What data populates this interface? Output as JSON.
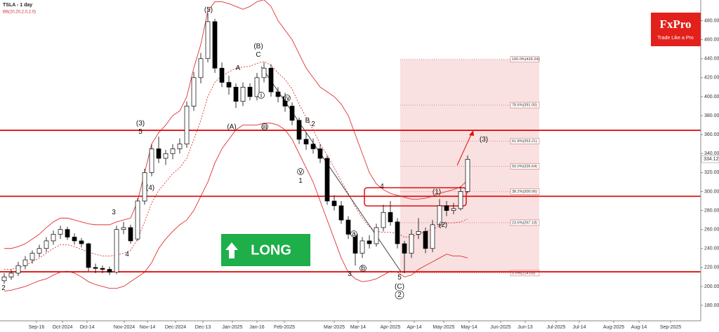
{
  "header": {
    "title": "TSLA - 1 day",
    "indicator": "BB(20,20,2,0,2.0)"
  },
  "logo": {
    "name": "FxPro",
    "tagline": "Trade Like a Pro"
  },
  "signal": "LONG",
  "chart_data": {
    "type": "candlestick",
    "up_color": "#ffffff",
    "down_color": "#000000",
    "ohlc": [
      [
        206,
        214,
        203,
        210
      ],
      [
        210,
        218,
        207,
        214
      ],
      [
        214,
        226,
        211,
        222
      ],
      [
        222,
        232,
        218,
        228
      ],
      [
        228,
        238,
        224,
        235
      ],
      [
        235,
        244,
        231,
        240
      ],
      [
        240,
        252,
        236,
        248
      ],
      [
        248,
        259,
        244,
        255
      ],
      [
        255,
        264,
        250,
        260
      ],
      [
        260,
        263,
        249,
        252
      ],
      [
        252,
        256,
        244,
        248
      ],
      [
        248,
        251,
        241,
        245
      ],
      [
        245,
        246,
        216,
        220
      ],
      [
        220,
        224,
        214,
        219
      ],
      [
        219,
        222,
        214,
        218
      ],
      [
        218,
        221,
        212,
        215
      ],
      [
        215,
        264,
        213,
        260
      ],
      [
        260,
        268,
        255,
        262
      ],
      [
        262,
        265,
        245,
        248
      ],
      [
        250,
        293,
        248,
        290
      ],
      [
        290,
        324,
        286,
        320
      ],
      [
        320,
        350,
        316,
        345
      ],
      [
        345,
        358,
        330,
        335
      ],
      [
        335,
        344,
        328,
        340
      ],
      [
        340,
        350,
        334,
        345
      ],
      [
        345,
        356,
        340,
        350
      ],
      [
        350,
        395,
        346,
        390
      ],
      [
        390,
        426,
        385,
        420
      ],
      [
        420,
        446,
        414,
        440
      ],
      [
        440,
        488,
        436,
        479
      ],
      [
        479,
        482,
        425,
        430
      ],
      [
        430,
        436,
        410,
        415
      ],
      [
        415,
        422,
        402,
        410
      ],
      [
        410,
        414,
        388,
        395
      ],
      [
        395,
        415,
        390,
        410
      ],
      [
        410,
        414,
        396,
        400
      ],
      [
        400,
        425,
        396,
        420
      ],
      [
        420,
        436,
        415,
        430
      ],
      [
        430,
        434,
        400,
        405
      ],
      [
        405,
        410,
        394,
        400
      ],
      [
        400,
        404,
        384,
        390
      ],
      [
        390,
        394,
        370,
        375
      ],
      [
        375,
        378,
        350,
        355
      ],
      [
        355,
        362,
        344,
        350
      ],
      [
        350,
        356,
        340,
        345
      ],
      [
        345,
        350,
        330,
        335
      ],
      [
        335,
        338,
        286,
        290
      ],
      [
        290,
        296,
        280,
        285
      ],
      [
        285,
        290,
        266,
        270
      ],
      [
        270,
        274,
        250,
        255
      ],
      [
        255,
        258,
        222,
        235
      ],
      [
        235,
        252,
        230,
        248
      ],
      [
        248,
        254,
        240,
        245
      ],
      [
        245,
        266,
        242,
        262
      ],
      [
        262,
        286,
        258,
        278
      ],
      [
        278,
        290,
        264,
        268
      ],
      [
        268,
        272,
        240,
        245
      ],
      [
        245,
        248,
        214,
        235
      ],
      [
        235,
        260,
        230,
        255
      ],
      [
        255,
        272,
        250,
        258
      ],
      [
        258,
        262,
        235,
        240
      ],
      [
        240,
        270,
        236,
        265
      ],
      [
        265,
        292,
        262,
        285
      ],
      [
        285,
        290,
        274,
        280
      ],
      [
        280,
        288,
        276,
        282
      ],
      [
        282,
        305,
        280,
        300
      ],
      [
        300,
        338,
        298,
        334
      ]
    ],
    "bands": [
      {
        "color": "#e03030",
        "dashed": false,
        "values": [
          240,
          240,
          242,
          245,
          250,
          255,
          262,
          268,
          272,
          272,
          270,
          268,
          266,
          265,
          265,
          265,
          268,
          270,
          272,
          290,
          320,
          350,
          362,
          370,
          380,
          385,
          400,
          430,
          455,
          490,
          500,
          500,
          498,
          495,
          492,
          495,
          500,
          502,
          495,
          480,
          470,
          460,
          445,
          430,
          420,
          410,
          405,
          400,
          392,
          380,
          360,
          340,
          320,
          308,
          302,
          298,
          296,
          294,
          292,
          292,
          293,
          295,
          298,
          300,
          302,
          305,
          312
        ]
      },
      {
        "color": "#e03030",
        "dashed": true,
        "values": [
          218,
          218,
          220,
          222,
          226,
          230,
          235,
          240,
          244,
          244,
          242,
          239,
          236,
          234,
          232,
          232,
          233,
          235,
          238,
          250,
          268,
          288,
          301,
          310,
          319,
          325,
          335,
          355,
          375,
          400,
          415,
          422,
          426,
          430,
          431,
          432,
          435,
          437,
          433,
          425,
          418,
          408,
          392,
          378,
          365,
          350,
          338,
          325,
          311,
          298,
          284,
          272,
          263,
          258,
          257,
          257,
          256,
          252,
          252,
          255,
          258,
          260,
          264,
          267,
          267,
          268,
          271
        ]
      },
      {
        "color": "#e03030",
        "dashed": false,
        "values": [
          195,
          196,
          198,
          200,
          203,
          206,
          208,
          212,
          215,
          216,
          214,
          210,
          205,
          202,
          200,
          198,
          198,
          200,
          205,
          210,
          215,
          225,
          240,
          250,
          258,
          265,
          270,
          280,
          295,
          310,
          330,
          345,
          355,
          365,
          370,
          370,
          370,
          372,
          372,
          370,
          365,
          355,
          340,
          325,
          310,
          290,
          270,
          250,
          230,
          215,
          208,
          205,
          206,
          208,
          212,
          216,
          215,
          210,
          212,
          218,
          222,
          226,
          230,
          234,
          232,
          232,
          230
        ]
      }
    ],
    "levels": [
      364.5,
      295,
      215.4
    ],
    "level_color": "#e01010",
    "fib_levels": [
      {
        "value": 439.24,
        "label": "100.0%(439.24)"
      },
      {
        "value": 391.05,
        "label": "78.6%(391.05)"
      },
      {
        "value": 353.21,
        "label": "61.8%(353.21)"
      },
      {
        "value": 326.64,
        "label": "50.0%(326.64)"
      },
      {
        "value": 300.06,
        "label": "38.2%(300.06)"
      },
      {
        "value": 267.18,
        "label": "23.6%(267.18)"
      },
      {
        "value": 214.03,
        "label": "0.0%(214.03)"
      }
    ],
    "last_price": 334.12,
    "ylim": [
      163.8,
      501.8
    ],
    "yticks": [
      {
        "value": 180,
        "label": "180.00"
      },
      {
        "value": 200,
        "label": "200.00"
      },
      {
        "value": 220,
        "label": "220.00"
      },
      {
        "value": 240,
        "label": "240.00"
      },
      {
        "value": 260,
        "label": "260.00"
      },
      {
        "value": 280,
        "label": "280.00"
      },
      {
        "value": 300,
        "label": "300.00"
      },
      {
        "value": 320,
        "label": "320.00"
      },
      {
        "value": 340,
        "label": "340.00"
      },
      {
        "value": 360,
        "label": "360.00"
      },
      {
        "value": 380,
        "label": "380.00"
      },
      {
        "value": 400,
        "label": "400.00"
      },
      {
        "value": 420,
        "label": "420.00"
      },
      {
        "value": 440,
        "label": "440.00"
      },
      {
        "value": 460,
        "label": "460.00"
      },
      {
        "value": 480,
        "label": "480.00"
      }
    ],
    "xticks": [
      "Sep-16",
      "Oct-2024",
      "Oct-14",
      "Nov-2024",
      "Nov-14",
      "Dec-2024",
      "Dec-13",
      "Jan-2025",
      "Jan-16",
      "Feb-2025",
      "Mar-2025",
      "Mar-14",
      "Apr-2025",
      "Apr-14",
      "May-2025",
      "May-14",
      "Jun-2025",
      "Jun-13",
      "Jul-2025",
      "Jul-14",
      "Aug-2025",
      "Aug-14",
      "Sep-2025"
    ],
    "annotations": [
      "(5)",
      "(B)",
      "C",
      "A",
      "(A)",
      "B",
      "i",
      "iii",
      "iv",
      "v",
      "1",
      "2",
      "(3)",
      "5",
      "(4)",
      "3",
      "4",
      "2",
      "3",
      "a",
      "b",
      "4",
      "5",
      "(C)",
      "2",
      "(1)",
      "(2)",
      "(3)"
    ]
  }
}
